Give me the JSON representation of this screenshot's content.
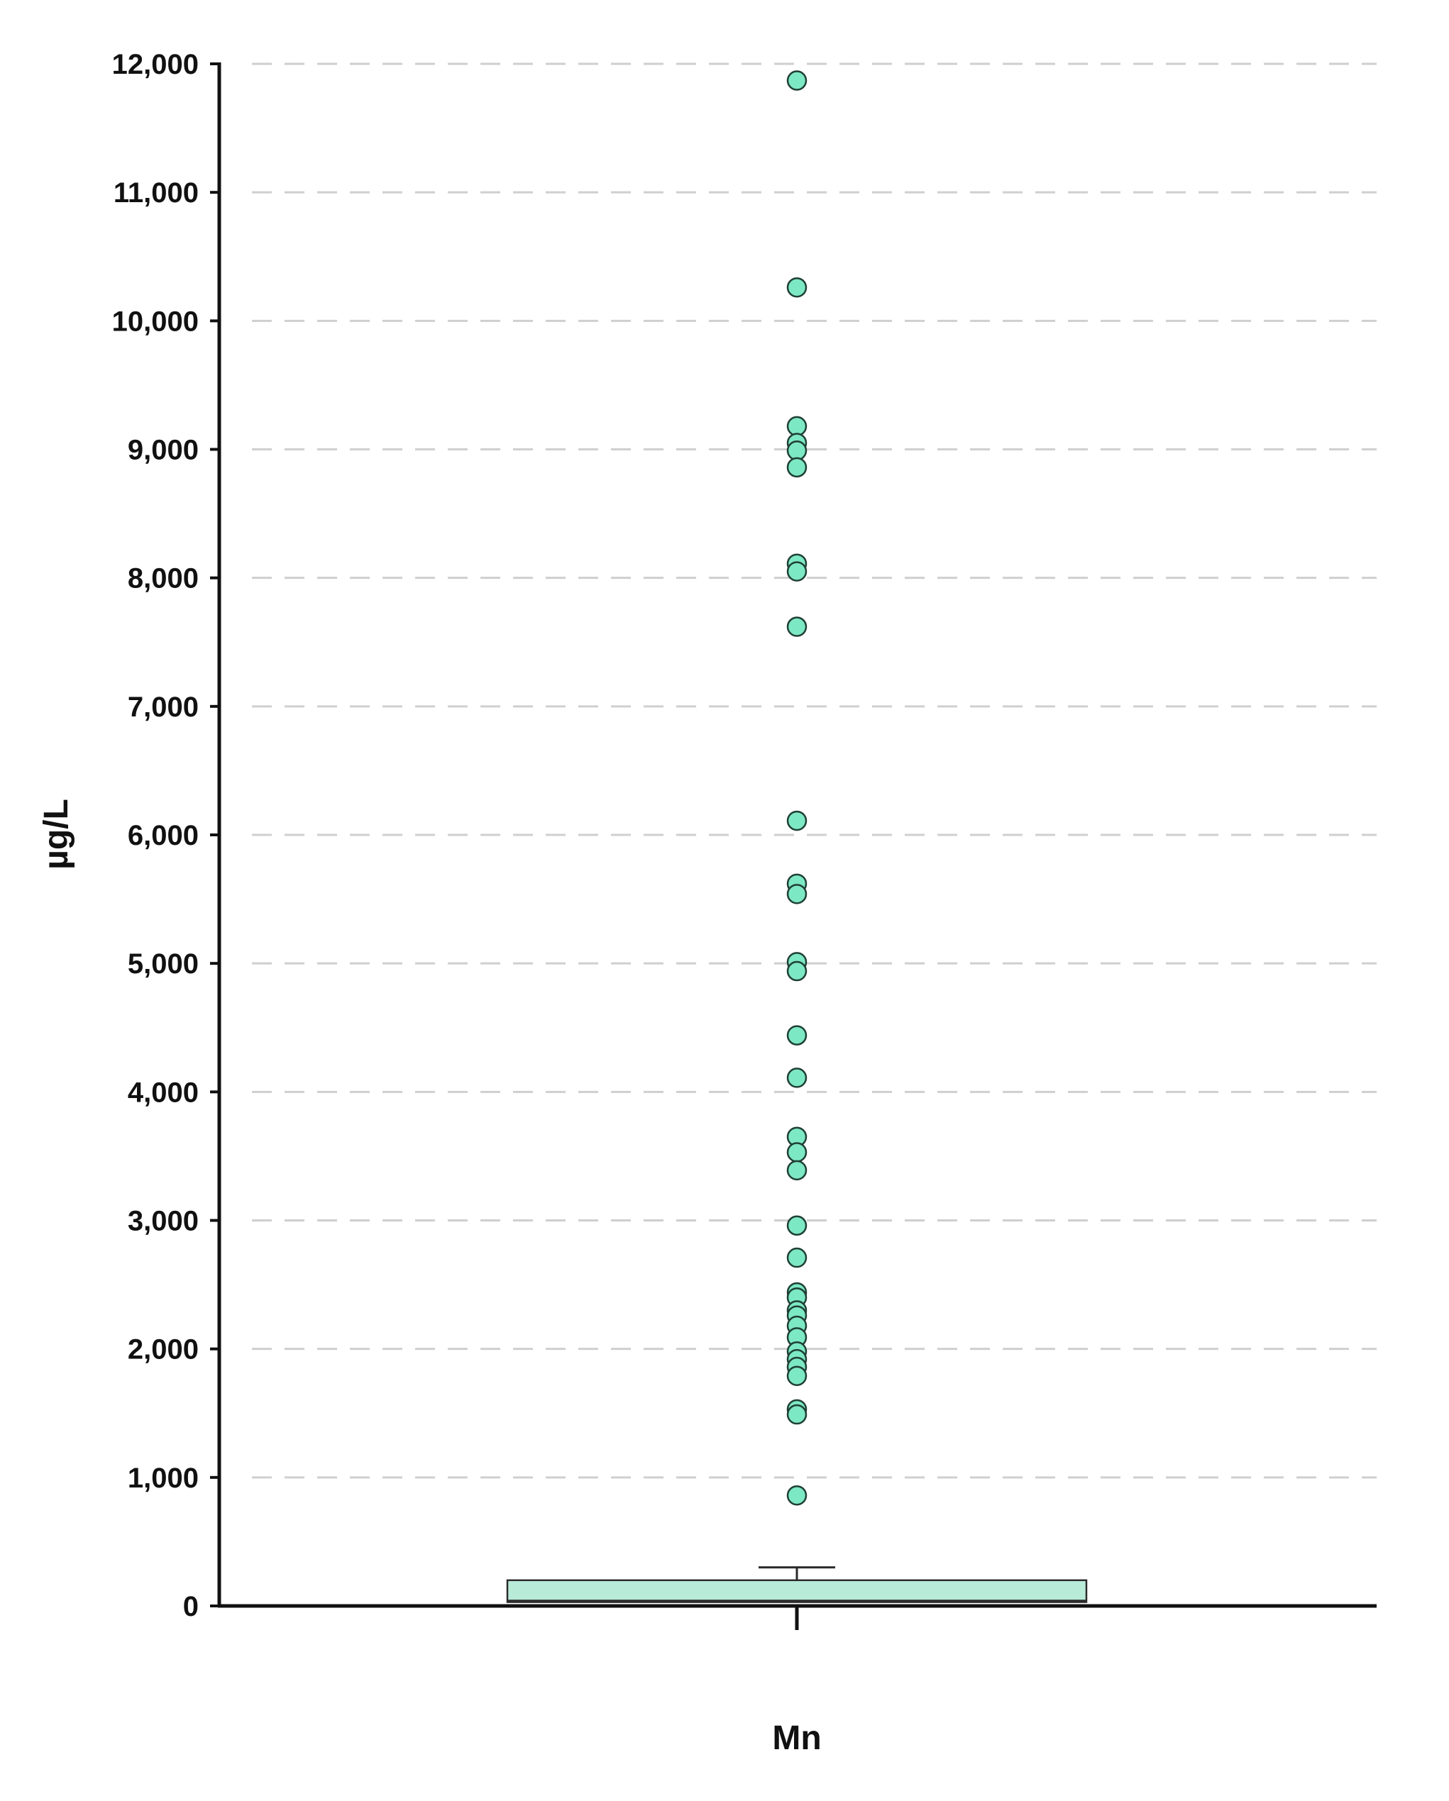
{
  "chart_data": {
    "type": "box",
    "ylabel": "µg/L",
    "xlabel": "",
    "categories": [
      "Mn"
    ],
    "ylim": [
      0,
      12000
    ],
    "yticks": [
      0,
      1000,
      2000,
      3000,
      4000,
      5000,
      6000,
      7000,
      8000,
      9000,
      10000,
      11000,
      12000
    ],
    "ytick_labels": [
      "0",
      "1,000",
      "2,000",
      "3,000",
      "4,000",
      "5,000",
      "6,000",
      "7,000",
      "8,000",
      "9,000",
      "10,000",
      "11,000",
      "12,000"
    ],
    "grid": true,
    "color": "#7de8c4",
    "box_fill": "#b9ebd9",
    "series": [
      {
        "category": "Mn",
        "whisker_low": 0,
        "q1": 30,
        "median": 40,
        "q3": 200,
        "whisker_high": 300,
        "outliers": [
          11870,
          10260,
          9180,
          9050,
          8990,
          8860,
          8110,
          8050,
          7620,
          6110,
          5620,
          5540,
          5010,
          4940,
          4440,
          4110,
          3650,
          3530,
          3390,
          2960,
          2710,
          2440,
          2400,
          2300,
          2260,
          2180,
          2090,
          1980,
          1920,
          1860,
          1790,
          1530,
          1490,
          860
        ]
      }
    ]
  }
}
